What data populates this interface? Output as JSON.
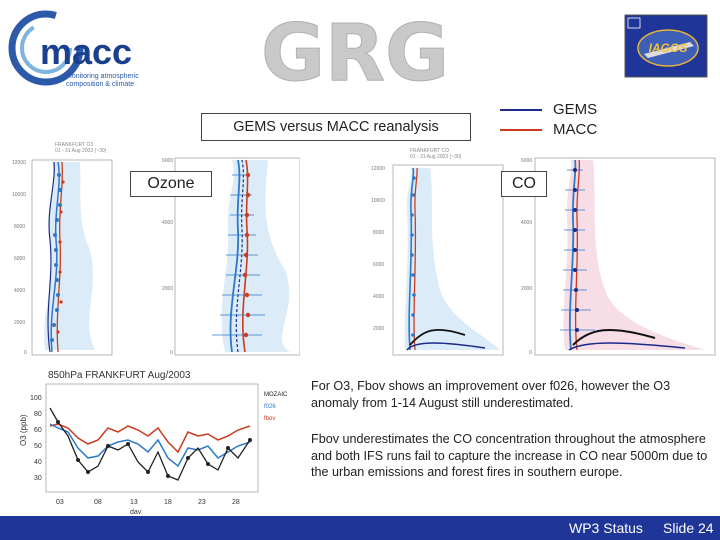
{
  "header": {
    "macc_logo": {
      "name": "macc",
      "tagline_line1": "Monitoring atmospheric",
      "tagline_line2": "composition & climate"
    },
    "grg_logo": {
      "text": "GRG"
    },
    "iagos_logo": {
      "text": "IAGOS"
    }
  },
  "slide_title": "GEMS versus MACC reanalysis",
  "legend": {
    "items": [
      {
        "label": "GEMS",
        "color": "#1d2a8a"
      },
      {
        "label": "MACC",
        "color": "#cc3b1f"
      }
    ]
  },
  "panels": {
    "ozone_label": "Ozone",
    "co_label": "CO",
    "ozone_plot": {
      "header_line1": "FRANKFURT O3",
      "header_line2": "01 - 31 Aug 2003 (~30)"
    },
    "co_plot": {
      "header_line1": "FRANKFURT CO",
      "header_line2": "01 - 31 Aug 2003 (~30)"
    },
    "timeseries": {
      "title": "850hPa FRANKFURT Aug/2003",
      "ylabel": "O3 (ppb)",
      "xlabel": "day",
      "legend": [
        "MOZAIC",
        "f026",
        "fbov"
      ]
    }
  },
  "text": {
    "para1": "For O3, Fbov shows an improvement over f026, however the O3 anomaly from 1-14 August still underestimated.",
    "para2": "Fbov underestimates the CO concentration throughout the atmosphere and both IFS runs fail to capture the increase in CO near 5000m due to the urban emissions and forest fires in southern europe."
  },
  "footer": {
    "status": "WP3 Status",
    "slide": "Slide 24"
  },
  "colors": {
    "footer_bg": "#1f3597",
    "gems_blue": "#1d2a8a",
    "macc_red": "#cc3b1f",
    "profile_blue": "#2e78c8",
    "shade_blue": "#cfe3f6",
    "shade_pink": "#f6dde6"
  }
}
